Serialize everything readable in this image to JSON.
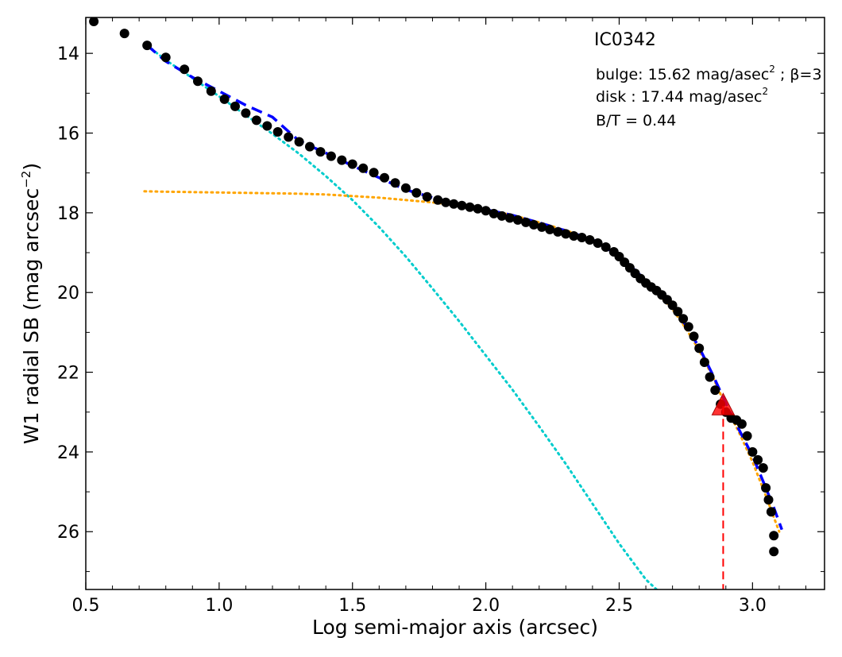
{
  "chart_data": {
    "type": "scatter",
    "title": "IC0342",
    "xlabel": "Log semi-major axis (arcsec)",
    "ylabel_main": "W1 radial SB (mag arcsec",
    "ylabel_sup": "−2",
    "ylabel_close": ")",
    "xlim": [
      0.5,
      3.27
    ],
    "ylim": [
      27.45,
      13.1
    ],
    "y_inverted": true,
    "grid": false,
    "x_ticks": [
      0.5,
      1.0,
      1.5,
      2.0,
      2.5,
      3.0
    ],
    "x_tick_labels": [
      "0.5",
      "1.0",
      "1.5",
      "2.0",
      "2.5",
      "3.0"
    ],
    "y_ticks": [
      14,
      16,
      18,
      20,
      22,
      24,
      26
    ],
    "y_tick_labels": [
      "14",
      "16",
      "18",
      "20",
      "22",
      "24",
      "26"
    ],
    "annotations": {
      "bulge_text": "bulge: 15.62 mag/asec",
      "bulge_sup": "2",
      "bulge_beta": " ; β=3",
      "disk_text": "disk  : 17.44 mag/asec",
      "disk_sup": "2",
      "bt_text": "B/T = 0.44"
    },
    "colors": {
      "data": "#000000",
      "total_fit": "#0000ff",
      "bulge_fit": "#00cccc",
      "disk_fit": "#ffa500",
      "marker": "#ff0000"
    },
    "series": [
      {
        "kind": "data_points",
        "x": [
          0.53,
          0.645,
          0.73,
          0.8,
          0.87,
          0.92,
          0.97,
          1.02,
          1.06,
          1.1,
          1.14,
          1.18,
          1.22,
          1.26,
          1.3,
          1.34,
          1.38,
          1.42,
          1.46,
          1.5,
          1.54,
          1.58,
          1.62,
          1.66,
          1.7,
          1.74,
          1.78,
          1.82,
          1.85,
          1.88,
          1.91,
          1.94,
          1.97,
          2.0,
          2.03,
          2.06,
          2.09,
          2.12,
          2.15,
          2.18,
          2.21,
          2.24,
          2.27,
          2.3,
          2.33,
          2.36,
          2.39,
          2.42,
          2.45,
          2.48,
          2.5,
          2.52,
          2.54,
          2.56,
          2.58,
          2.6,
          2.62,
          2.64,
          2.66,
          2.68,
          2.7,
          2.72,
          2.74,
          2.76,
          2.78,
          2.8,
          2.82,
          2.84,
          2.86,
          2.88,
          2.9,
          2.92,
          2.94,
          2.96,
          2.98,
          3.0,
          3.02,
          3.04,
          3.05,
          3.06,
          3.07,
          3.08,
          3.08
        ],
        "y": [
          13.2,
          13.5,
          13.8,
          14.1,
          14.4,
          14.7,
          14.95,
          15.15,
          15.33,
          15.5,
          15.68,
          15.82,
          15.97,
          16.1,
          16.22,
          16.34,
          16.47,
          16.58,
          16.68,
          16.78,
          16.88,
          16.99,
          17.12,
          17.25,
          17.38,
          17.5,
          17.6,
          17.68,
          17.74,
          17.78,
          17.82,
          17.86,
          17.9,
          17.95,
          18.02,
          18.08,
          18.13,
          18.18,
          18.24,
          18.3,
          18.36,
          18.42,
          18.48,
          18.53,
          18.58,
          18.62,
          18.68,
          18.76,
          18.86,
          18.98,
          19.1,
          19.24,
          19.38,
          19.52,
          19.65,
          19.76,
          19.86,
          19.95,
          20.06,
          20.18,
          20.32,
          20.48,
          20.66,
          20.86,
          21.1,
          21.4,
          21.75,
          22.12,
          22.45,
          22.8,
          23.0,
          23.15,
          23.2,
          23.3,
          23.6,
          24.0,
          24.2,
          24.4,
          24.9,
          25.2,
          25.5,
          26.1,
          26.5
        ]
      },
      {
        "kind": "total_fit",
        "x": [
          0.73,
          0.8,
          0.9,
          1.0,
          1.1,
          1.2,
          1.3,
          1.4,
          1.5,
          1.6,
          1.7,
          1.8,
          1.9,
          2.0,
          2.1,
          2.2,
          2.3,
          2.4,
          2.5,
          2.55,
          2.6,
          2.65,
          2.7,
          2.75,
          2.8,
          2.85,
          2.9,
          2.95,
          3.0,
          3.05,
          3.08,
          3.11
        ],
        "y": [
          13.8,
          14.2,
          14.6,
          14.95,
          15.3,
          15.6,
          16.2,
          16.5,
          16.82,
          17.12,
          17.42,
          17.62,
          17.78,
          17.92,
          18.06,
          18.25,
          18.45,
          18.67,
          19.08,
          19.38,
          19.7,
          20.0,
          20.36,
          20.82,
          21.38,
          22.05,
          22.78,
          23.45,
          24.1,
          24.9,
          25.4,
          25.95
        ]
      },
      {
        "kind": "bulge_fit",
        "x": [
          0.73,
          0.8,
          0.9,
          1.0,
          1.1,
          1.2,
          1.3,
          1.4,
          1.5,
          1.6,
          1.7,
          1.8,
          1.9,
          2.0,
          2.1,
          2.2,
          2.3,
          2.4,
          2.5,
          2.6,
          2.64
        ],
        "y": [
          13.8,
          14.17,
          14.62,
          15.08,
          15.55,
          16.02,
          16.52,
          17.08,
          17.68,
          18.36,
          19.1,
          19.9,
          20.72,
          21.58,
          22.44,
          23.36,
          24.3,
          25.3,
          26.3,
          27.2,
          27.45
        ]
      },
      {
        "kind": "disk_fit",
        "x": [
          0.72,
          0.8,
          0.9,
          1.0,
          1.1,
          1.2,
          1.3,
          1.4,
          1.5,
          1.6,
          1.7,
          1.8,
          1.9,
          2.0,
          2.1,
          2.2,
          2.3,
          2.4,
          2.5,
          2.55,
          2.6,
          2.65,
          2.7,
          2.75,
          2.8,
          2.85,
          2.9,
          2.95,
          3.0,
          3.05,
          3.1
        ],
        "y": [
          17.46,
          17.47,
          17.48,
          17.49,
          17.5,
          17.51,
          17.52,
          17.54,
          17.58,
          17.62,
          17.68,
          17.74,
          17.82,
          17.92,
          18.06,
          18.24,
          18.44,
          18.68,
          19.08,
          19.38,
          19.72,
          20.06,
          20.42,
          20.9,
          21.45,
          22.1,
          22.85,
          23.52,
          24.25,
          25.1,
          26.0
        ]
      }
    ],
    "marker_point": {
      "x": 2.89,
      "y": 22.85,
      "shape": "triangle"
    }
  }
}
